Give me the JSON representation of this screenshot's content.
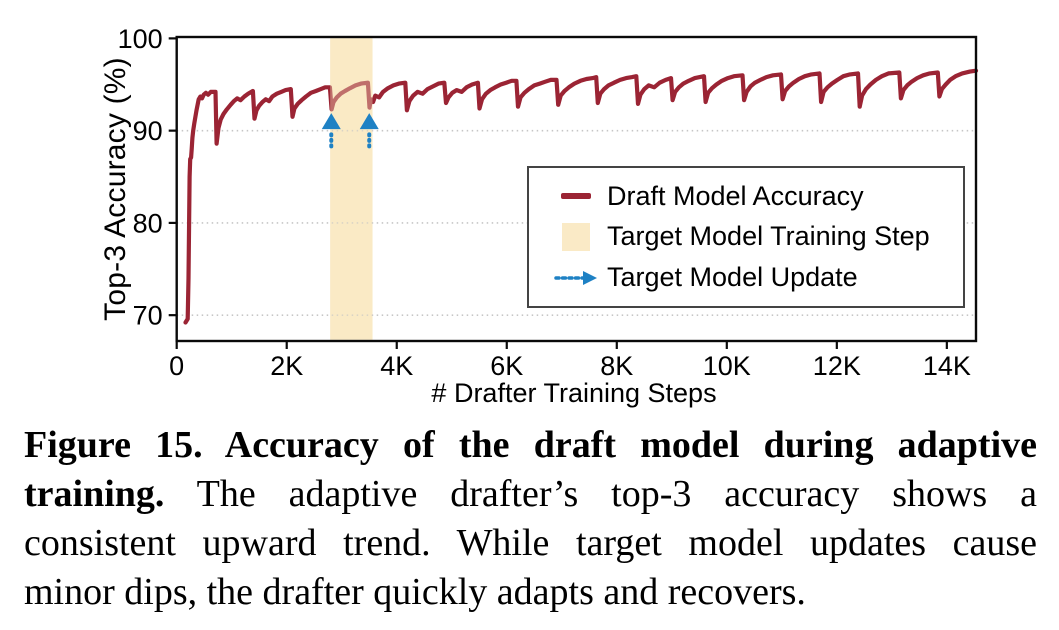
{
  "figure": {
    "caption": {
      "lines": [
        {
          "bold": "Figure 15. Accuracy of the draft model during adaptive",
          "normal": ""
        },
        {
          "bold": "training.",
          "normal": " The adaptive drafter’s top-3 accuracy shows a"
        },
        {
          "bold": "",
          "normal": "consistent upward trend. While target model updates cause"
        },
        {
          "bold": "",
          "normal": "minor dips, the drafter quickly adapts and recovers."
        }
      ]
    }
  },
  "chart_data": {
    "type": "line",
    "title": "",
    "xlabel": "# Drafter Training Steps",
    "ylabel": "Top-3 Accuracy (%)",
    "xlim": [
      0,
      14530
    ],
    "ylim": [
      67.2,
      100.15
    ],
    "xticks": [
      {
        "value": 0,
        "label": "0"
      },
      {
        "value": 2000,
        "label": "2K"
      },
      {
        "value": 4000,
        "label": "4K"
      },
      {
        "value": 6000,
        "label": "6K"
      },
      {
        "value": 8000,
        "label": "8K"
      },
      {
        "value": 10000,
        "label": "10K"
      },
      {
        "value": 12000,
        "label": "12K"
      },
      {
        "value": 14000,
        "label": "14K"
      }
    ],
    "yticks": [
      {
        "value": 70,
        "label": "70"
      },
      {
        "value": 80,
        "label": "80"
      },
      {
        "value": 90,
        "label": "90"
      },
      {
        "value": 100,
        "label": "100"
      }
    ],
    "grid": {
      "axis": "y",
      "style": "dotted",
      "at": [
        70,
        80,
        90
      ],
      "color": "#c6c6c6"
    },
    "colors": {
      "line": "#9b2434",
      "band": "#faeac6",
      "arrow": "#1e81c4",
      "spine": "#0a0a0a"
    },
    "legend": {
      "position": "inside-right",
      "entries": [
        {
          "marker": "line",
          "label": "Draft Model Accuracy"
        },
        {
          "marker": "band",
          "label": "Target Model Training Step"
        },
        {
          "marker": "arrow",
          "label": "Target Model Update"
        }
      ]
    },
    "band": {
      "x0": 2790,
      "x1": 3560,
      "label": "Target Model Training Step"
    },
    "arrows": {
      "x": [
        2810,
        3500
      ],
      "y_tail": 88.3,
      "y_tip": 91.9,
      "label": "Target Model Update"
    },
    "series": [
      {
        "name": "Draft Model Accuracy",
        "points": [
          [
            160,
            69.2
          ],
          [
            200,
            69.6
          ],
          [
            215,
            74
          ],
          [
            225,
            80
          ],
          [
            235,
            85
          ],
          [
            245,
            86.9
          ],
          [
            262,
            87.1
          ],
          [
            272,
            88.0
          ],
          [
            286,
            89.2
          ],
          [
            300,
            90.0
          ],
          [
            320,
            90.8
          ],
          [
            340,
            91.5
          ],
          [
            360,
            92.2
          ],
          [
            380,
            92.8
          ],
          [
            400,
            93.4
          ],
          [
            430,
            93.7
          ],
          [
            460,
            93.5
          ],
          [
            490,
            93.9
          ],
          [
            530,
            94.1
          ],
          [
            570,
            93.9
          ],
          [
            620,
            94.2
          ],
          [
            685,
            94.2
          ],
          [
            705,
            94.2
          ],
          [
            725,
            88.6
          ],
          [
            760,
            90.3
          ],
          [
            800,
            91.2
          ],
          [
            850,
            91.8
          ],
          [
            910,
            92.3
          ],
          [
            980,
            92.8
          ],
          [
            1040,
            93.2
          ],
          [
            1100,
            93.5
          ],
          [
            1160,
            93.3
          ],
          [
            1230,
            93.7
          ],
          [
            1300,
            94.0
          ],
          [
            1385,
            94.3
          ],
          [
            1415,
            91.3
          ],
          [
            1450,
            92.2
          ],
          [
            1500,
            92.7
          ],
          [
            1560,
            93.1
          ],
          [
            1620,
            93.4
          ],
          [
            1680,
            93.2
          ],
          [
            1740,
            93.7
          ],
          [
            1820,
            94.0
          ],
          [
            1900,
            94.2
          ],
          [
            1980,
            94.4
          ],
          [
            2075,
            94.5
          ],
          [
            2105,
            91.5
          ],
          [
            2140,
            92.4
          ],
          [
            2200,
            92.9
          ],
          [
            2270,
            93.3
          ],
          [
            2350,
            93.7
          ],
          [
            2440,
            94.1
          ],
          [
            2530,
            94.3
          ],
          [
            2620,
            94.5
          ],
          [
            2700,
            94.7
          ],
          [
            2785,
            94.7
          ],
          [
            2815,
            92.3
          ],
          [
            2850,
            93.1
          ],
          [
            2910,
            93.6
          ],
          [
            2980,
            94.0
          ],
          [
            3060,
            94.3
          ],
          [
            3150,
            94.6
          ],
          [
            3250,
            94.9
          ],
          [
            3350,
            95.1
          ],
          [
            3475,
            95.2
          ],
          [
            3505,
            92.5
          ],
          [
            3530,
            93.4
          ],
          [
            3570,
            93.1
          ],
          [
            3610,
            93.8
          ],
          [
            3680,
            93.6
          ],
          [
            3750,
            94.2
          ],
          [
            3840,
            94.6
          ],
          [
            3940,
            94.9
          ],
          [
            4040,
            95.1
          ],
          [
            4155,
            95.2
          ],
          [
            4185,
            92.2
          ],
          [
            4230,
            93.2
          ],
          [
            4300,
            93.8
          ],
          [
            4380,
            94.2
          ],
          [
            4470,
            94.0
          ],
          [
            4560,
            94.5
          ],
          [
            4660,
            94.8
          ],
          [
            4760,
            95.1
          ],
          [
            4865,
            95.2
          ],
          [
            4895,
            93.0
          ],
          [
            4940,
            93.6
          ],
          [
            5010,
            94.1
          ],
          [
            5090,
            94.4
          ],
          [
            5180,
            94.2
          ],
          [
            5270,
            94.7
          ],
          [
            5370,
            95.0
          ],
          [
            5475,
            95.2
          ],
          [
            5505,
            92.4
          ],
          [
            5550,
            93.4
          ],
          [
            5620,
            94.0
          ],
          [
            5700,
            94.4
          ],
          [
            5790,
            94.7
          ],
          [
            5890,
            95.0
          ],
          [
            5990,
            95.2
          ],
          [
            6090,
            95.4
          ],
          [
            6175,
            95.4
          ],
          [
            6205,
            92.6
          ],
          [
            6250,
            93.6
          ],
          [
            6320,
            94.1
          ],
          [
            6400,
            94.5
          ],
          [
            6500,
            94.9
          ],
          [
            6600,
            95.1
          ],
          [
            6700,
            95.3
          ],
          [
            6800,
            95.5
          ],
          [
            6905,
            95.5
          ],
          [
            6935,
            92.8
          ],
          [
            6980,
            93.8
          ],
          [
            7050,
            94.3
          ],
          [
            7130,
            94.7
          ],
          [
            7230,
            95.1
          ],
          [
            7340,
            95.4
          ],
          [
            7450,
            95.6
          ],
          [
            7560,
            95.7
          ],
          [
            7625,
            95.8
          ],
          [
            7655,
            93.0
          ],
          [
            7700,
            94.0
          ],
          [
            7770,
            94.5
          ],
          [
            7850,
            94.9
          ],
          [
            7950,
            95.2
          ],
          [
            8060,
            95.5
          ],
          [
            8170,
            95.7
          ],
          [
            8280,
            95.8
          ],
          [
            8355,
            95.9
          ],
          [
            8385,
            92.9
          ],
          [
            8430,
            93.9
          ],
          [
            8500,
            94.5
          ],
          [
            8580,
            94.9
          ],
          [
            8680,
            94.7
          ],
          [
            8780,
            95.2
          ],
          [
            8890,
            95.5
          ],
          [
            8985,
            95.7
          ],
          [
            9015,
            93.3
          ],
          [
            9060,
            94.2
          ],
          [
            9130,
            94.7
          ],
          [
            9210,
            95.1
          ],
          [
            9310,
            95.4
          ],
          [
            9420,
            95.7
          ],
          [
            9585,
            95.9
          ],
          [
            9615,
            93.1
          ],
          [
            9660,
            94.1
          ],
          [
            9730,
            94.6
          ],
          [
            9810,
            95.0
          ],
          [
            9910,
            95.4
          ],
          [
            10020,
            95.7
          ],
          [
            10130,
            95.9
          ],
          [
            10285,
            96.0
          ],
          [
            10315,
            93.3
          ],
          [
            10360,
            94.2
          ],
          [
            10430,
            94.8
          ],
          [
            10510,
            95.2
          ],
          [
            10610,
            95.5
          ],
          [
            10720,
            95.8
          ],
          [
            10840,
            96.0
          ],
          [
            10985,
            96.1
          ],
          [
            11015,
            93.4
          ],
          [
            11060,
            94.3
          ],
          [
            11130,
            94.8
          ],
          [
            11210,
            95.2
          ],
          [
            11310,
            95.6
          ],
          [
            11420,
            95.9
          ],
          [
            11540,
            96.1
          ],
          [
            11685,
            96.2
          ],
          [
            11715,
            93.1
          ],
          [
            11760,
            94.2
          ],
          [
            11830,
            94.7
          ],
          [
            11910,
            95.1
          ],
          [
            12010,
            95.5
          ],
          [
            12120,
            95.9
          ],
          [
            12240,
            96.1
          ],
          [
            12385,
            96.2
          ],
          [
            12415,
            92.6
          ],
          [
            12460,
            93.8
          ],
          [
            12530,
            94.5
          ],
          [
            12610,
            95.0
          ],
          [
            12710,
            95.5
          ],
          [
            12820,
            95.9
          ],
          [
            12940,
            96.2
          ],
          [
            13135,
            96.3
          ],
          [
            13165,
            93.5
          ],
          [
            13210,
            94.4
          ],
          [
            13280,
            94.9
          ],
          [
            13360,
            95.3
          ],
          [
            13460,
            95.7
          ],
          [
            13570,
            96.0
          ],
          [
            13690,
            96.2
          ],
          [
            13835,
            96.3
          ],
          [
            13865,
            93.7
          ],
          [
            13910,
            94.5
          ],
          [
            13980,
            95.0
          ],
          [
            14060,
            95.5
          ],
          [
            14160,
            95.9
          ],
          [
            14280,
            96.2
          ],
          [
            14420,
            96.4
          ],
          [
            14530,
            96.5
          ]
        ]
      }
    ]
  }
}
